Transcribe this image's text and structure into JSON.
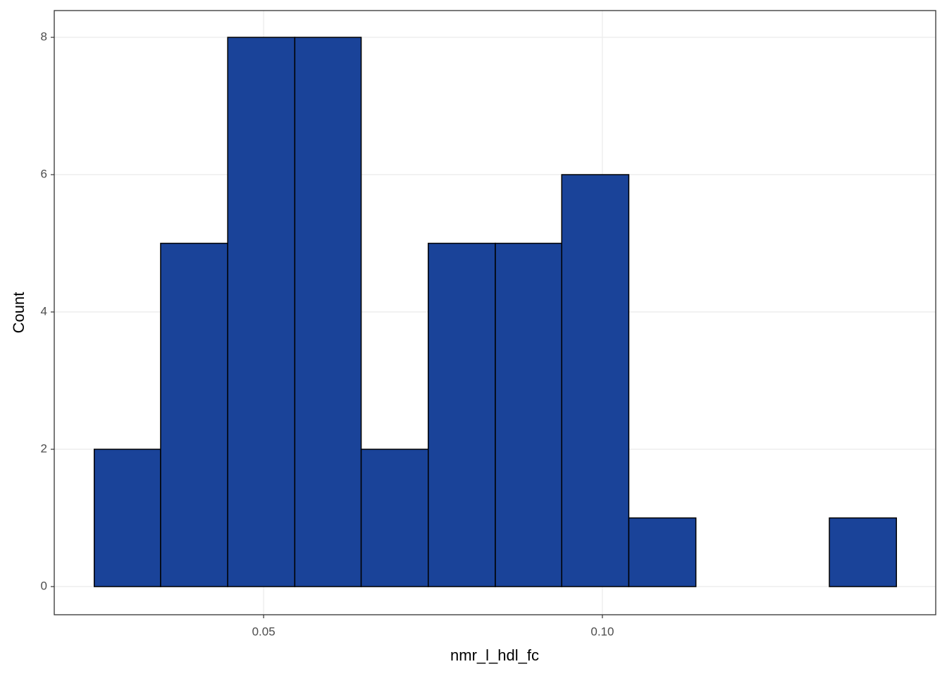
{
  "chart_data": {
    "type": "histogram",
    "x_label": "nmr_l_hdl_fc",
    "y_label": "Count",
    "bins": [
      0.025,
      0.0348,
      0.0447,
      0.0546,
      0.0644,
      0.0743,
      0.0842,
      0.094,
      0.1039,
      0.1138,
      0.1236,
      0.1335,
      0.1434
    ],
    "values": [
      2,
      5,
      8,
      8,
      2,
      5,
      5,
      6,
      1,
      0,
      0,
      1
    ],
    "color": "#1a4399",
    "edge_color": "#000000",
    "xlim": [
      0.0191,
      0.1492
    ],
    "xticks": [
      0.05,
      {
        "value": 0.1,
        "label": "0.10"
      }
    ],
    "ylim": [
      -0.41,
      8.39
    ],
    "yticks": [
      0,
      2,
      4,
      6,
      8
    ],
    "grid": true
  }
}
